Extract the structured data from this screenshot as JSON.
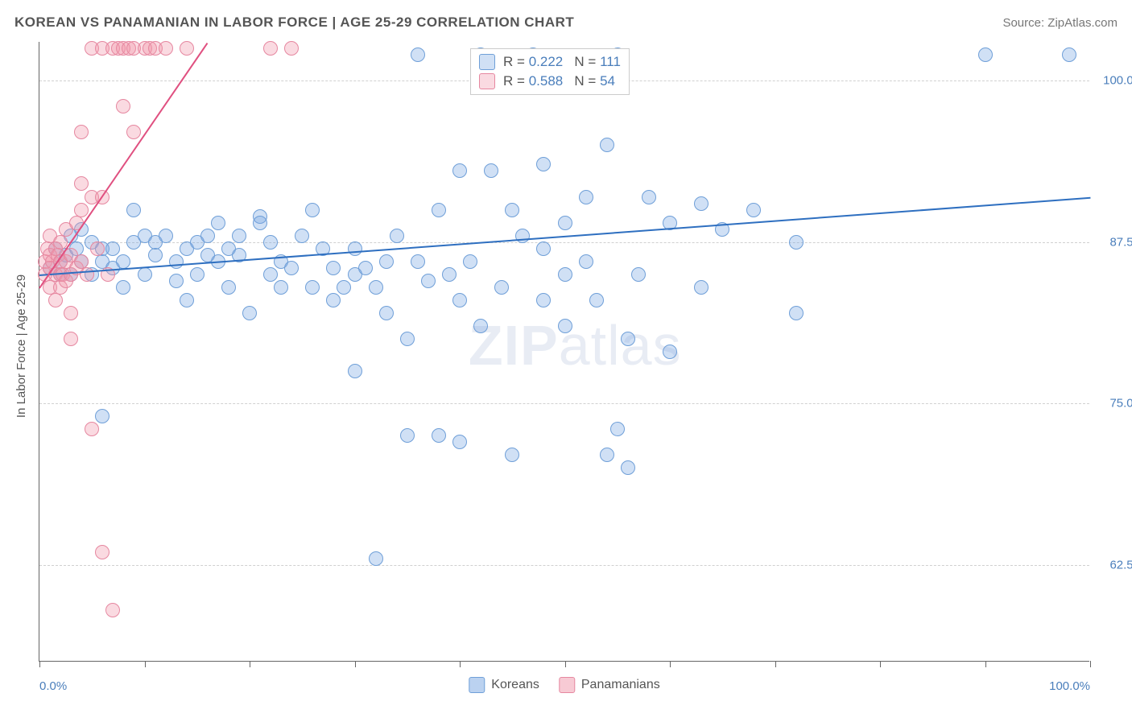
{
  "title": "KOREAN VS PANAMANIAN IN LABOR FORCE | AGE 25-29 CORRELATION CHART",
  "source": "Source: ZipAtlas.com",
  "watermark_bold": "ZIP",
  "watermark_rest": "atlas",
  "y_axis_title": "In Labor Force | Age 25-29",
  "chart": {
    "type": "scatter",
    "xlim": [
      0,
      100
    ],
    "ylim": [
      55,
      103
    ],
    "x_labels": [
      {
        "v": 0,
        "label": "0.0%"
      },
      {
        "v": 100,
        "label": "100.0%"
      }
    ],
    "y_labels": [
      {
        "v": 62.5,
        "label": "62.5%"
      },
      {
        "v": 75.0,
        "label": "75.0%"
      },
      {
        "v": 87.5,
        "label": "87.5%"
      },
      {
        "v": 100.0,
        "label": "100.0%"
      }
    ],
    "x_ticks": [
      0,
      10,
      20,
      30,
      40,
      50,
      60,
      70,
      80,
      90,
      100
    ],
    "gridlines_y": [
      62.5,
      75.0,
      87.5,
      100.0
    ],
    "grid_color": "#d0d0d0",
    "background_color": "#ffffff",
    "marker_radius": 9,
    "marker_border_width": 1.2
  },
  "series": [
    {
      "name": "Koreans",
      "fill": "rgba(120,165,225,0.35)",
      "stroke": "#6f9fd8",
      "trend": {
        "color": "#2e6fc0",
        "x1": 0,
        "y1": 85.0,
        "x2": 100,
        "y2": 91.0
      },
      "stats": {
        "R": "0.222",
        "N": "111"
      },
      "points": [
        [
          1,
          85.5
        ],
        [
          1.5,
          87
        ],
        [
          2,
          86
        ],
        [
          2,
          85
        ],
        [
          2.5,
          86.5
        ],
        [
          3,
          88
        ],
        [
          3,
          85
        ],
        [
          3.5,
          87
        ],
        [
          4,
          88.5
        ],
        [
          4,
          86
        ],
        [
          5,
          85
        ],
        [
          5,
          87.5
        ],
        [
          6,
          87
        ],
        [
          6,
          86
        ],
        [
          6,
          74
        ],
        [
          7,
          87
        ],
        [
          7,
          85.5
        ],
        [
          8,
          86
        ],
        [
          8,
          84
        ],
        [
          9,
          87.5
        ],
        [
          9,
          90
        ],
        [
          10,
          88
        ],
        [
          10,
          85
        ],
        [
          11,
          86.5
        ],
        [
          11,
          87.5
        ],
        [
          12,
          88
        ],
        [
          13,
          86
        ],
        [
          13,
          84.5
        ],
        [
          14,
          87
        ],
        [
          14,
          83
        ],
        [
          15,
          87.5
        ],
        [
          15,
          85
        ],
        [
          16,
          88
        ],
        [
          16,
          86.5
        ],
        [
          17,
          89
        ],
        [
          17,
          86
        ],
        [
          18,
          87
        ],
        [
          18,
          84
        ],
        [
          19,
          86.5
        ],
        [
          19,
          88
        ],
        [
          20,
          82
        ],
        [
          21,
          89.5
        ],
        [
          21,
          89
        ],
        [
          22,
          85
        ],
        [
          22,
          87.5
        ],
        [
          23,
          86
        ],
        [
          23,
          84
        ],
        [
          24,
          85.5
        ],
        [
          25,
          88
        ],
        [
          26,
          90
        ],
        [
          26,
          84
        ],
        [
          27,
          87
        ],
        [
          28,
          83
        ],
        [
          28,
          85.5
        ],
        [
          29,
          84
        ],
        [
          30,
          87
        ],
        [
          30,
          85
        ],
        [
          30,
          77.5
        ],
        [
          31,
          85.5
        ],
        [
          32,
          84
        ],
        [
          32,
          63
        ],
        [
          33,
          86
        ],
        [
          33,
          82
        ],
        [
          34,
          88
        ],
        [
          35,
          80
        ],
        [
          35,
          72.5
        ],
        [
          36,
          86
        ],
        [
          36,
          102
        ],
        [
          37,
          84.5
        ],
        [
          38,
          90
        ],
        [
          38,
          72.5
        ],
        [
          39,
          85
        ],
        [
          40,
          93
        ],
        [
          40,
          83
        ],
        [
          40,
          72
        ],
        [
          41,
          86
        ],
        [
          42,
          81
        ],
        [
          42,
          102
        ],
        [
          43,
          93
        ],
        [
          44,
          84
        ],
        [
          45,
          71
        ],
        [
          45,
          90
        ],
        [
          46,
          88
        ],
        [
          47,
          102
        ],
        [
          48,
          87
        ],
        [
          48,
          83
        ],
        [
          48,
          93.5
        ],
        [
          50,
          85
        ],
        [
          50,
          81
        ],
        [
          50,
          89
        ],
        [
          52,
          91
        ],
        [
          52,
          86
        ],
        [
          53,
          83
        ],
        [
          54,
          95
        ],
        [
          54,
          71
        ],
        [
          55,
          73
        ],
        [
          55,
          102
        ],
        [
          56,
          80
        ],
        [
          56,
          70
        ],
        [
          57,
          85
        ],
        [
          58,
          91
        ],
        [
          60,
          89
        ],
        [
          60,
          79
        ],
        [
          63,
          84
        ],
        [
          63,
          90.5
        ],
        [
          65,
          88.5
        ],
        [
          68,
          90
        ],
        [
          72,
          87.5
        ],
        [
          72,
          82
        ],
        [
          90,
          102
        ],
        [
          98,
          102
        ]
      ]
    },
    {
      "name": "Panamanians",
      "fill": "rgba(240,150,170,0.35)",
      "stroke": "#e687a0",
      "trend": {
        "color": "#e05080",
        "x1": 0,
        "y1": 84.0,
        "x2": 16,
        "y2": 103.0
      },
      "stats": {
        "R": "0.588",
        "N": "54"
      },
      "points": [
        [
          0.5,
          86
        ],
        [
          0.5,
          85
        ],
        [
          0.8,
          87
        ],
        [
          1,
          86.5
        ],
        [
          1,
          84
        ],
        [
          1,
          85.5
        ],
        [
          1,
          88
        ],
        [
          1.2,
          86
        ],
        [
          1.5,
          85
        ],
        [
          1.5,
          87
        ],
        [
          1.5,
          83
        ],
        [
          1.8,
          86.5
        ],
        [
          2,
          85
        ],
        [
          2,
          86
        ],
        [
          2,
          84
        ],
        [
          2,
          87.5
        ],
        [
          2.2,
          85
        ],
        [
          2.5,
          86
        ],
        [
          2.5,
          88.5
        ],
        [
          2.5,
          84.5
        ],
        [
          3,
          85
        ],
        [
          3,
          86.5
        ],
        [
          3,
          82
        ],
        [
          3,
          80
        ],
        [
          3.5,
          89
        ],
        [
          3.5,
          85.5
        ],
        [
          4,
          86
        ],
        [
          4,
          90
        ],
        [
          4,
          92
        ],
        [
          4,
          96
        ],
        [
          4.5,
          85
        ],
        [
          5,
          91
        ],
        [
          5,
          102.5
        ],
        [
          5,
          73
        ],
        [
          5.5,
          87
        ],
        [
          6,
          102.5
        ],
        [
          6,
          91
        ],
        [
          6,
          63.5
        ],
        [
          6.5,
          85
        ],
        [
          7,
          102.5
        ],
        [
          7,
          59
        ],
        [
          7.5,
          102.5
        ],
        [
          8,
          98
        ],
        [
          8,
          102.5
        ],
        [
          8.5,
          102.5
        ],
        [
          9,
          102.5
        ],
        [
          9,
          96
        ],
        [
          10,
          102.5
        ],
        [
          10.5,
          102.5
        ],
        [
          11,
          102.5
        ],
        [
          12,
          102.5
        ],
        [
          14,
          102.5
        ],
        [
          22,
          102.5
        ],
        [
          24,
          102.5
        ]
      ]
    }
  ],
  "stats_box": {
    "left_pct": 41,
    "top_pct": 1
  },
  "legend_bottom": [
    {
      "label": "Koreans",
      "fill": "rgba(120,165,225,0.5)",
      "stroke": "#6f9fd8"
    },
    {
      "label": "Panamanians",
      "fill": "rgba(240,150,170,0.5)",
      "stroke": "#e687a0"
    }
  ]
}
